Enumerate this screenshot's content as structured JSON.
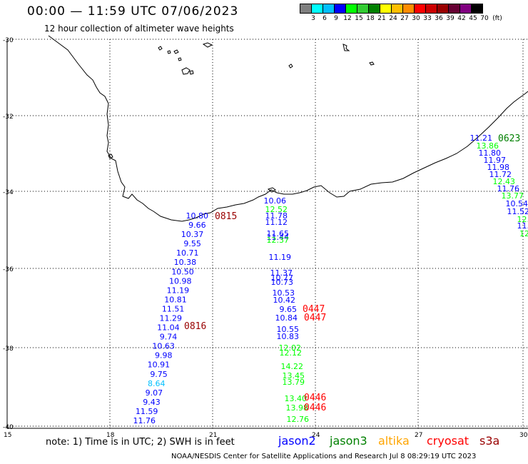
{
  "header": {
    "title": "00:00 — 11:59 UTC 07/06/2023",
    "subtitle": "12 hour collection of altimeter wave heights"
  },
  "color_scale": {
    "labels": [
      "3",
      "6",
      "9",
      "12",
      "15",
      "18",
      "21",
      "24",
      "27",
      "30",
      "33",
      "36",
      "39",
      "42",
      "45",
      "70"
    ],
    "unit": "(ft)",
    "colors": [
      "#7f7f7f",
      "#00ffff",
      "#00bfff",
      "#0000ff",
      "#00ff00",
      "#33cc33",
      "#008000",
      "#ffff00",
      "#ffbf00",
      "#ff8c00",
      "#ff0000",
      "#cc0000",
      "#990000",
      "#660033",
      "#800080",
      "#000000"
    ]
  },
  "axes": {
    "lat_labels": [
      "-30",
      "-32",
      "-34",
      "-36",
      "-38",
      "-40"
    ],
    "lon_labels": [
      "15",
      "18",
      "21",
      "24",
      "27",
      "30"
    ]
  },
  "tracks": {
    "jason2_west": {
      "values": [
        "10.80",
        "9.66",
        "10.37",
        "9.55",
        "10.71",
        "10.38",
        "10.50",
        "10.98",
        "11.19",
        "10.81",
        "11.51",
        "11.29",
        "11.04",
        "9.74",
        "10.63",
        "9.98",
        "10.91",
        "9.75",
        "8.64",
        "9.07",
        "9.43",
        "11.59",
        "11.76"
      ],
      "colors": [
        "#0000ff",
        "#0000ff",
        "#0000ff",
        "#0000ff",
        "#0000ff",
        "#0000ff",
        "#0000ff",
        "#0000ff",
        "#0000ff",
        "#0000ff",
        "#0000ff",
        "#0000ff",
        "#0000ff",
        "#0000ff",
        "#0000ff",
        "#0000ff",
        "#0000ff",
        "#0000ff",
        "#00bfff",
        "#0000ff",
        "#0000ff",
        "#0000ff",
        "#0000ff"
      ],
      "times": [
        "0815",
        "0816"
      ],
      "time_color": "#990000"
    },
    "mixed_central": {
      "values": [
        "10.06",
        "12.52",
        "11.78",
        "11.12",
        "11.65",
        "11.44",
        "12.37",
        "11.19",
        "11.37",
        "10.77",
        "10.73",
        "10.53",
        "10.42",
        "9.65",
        "10.84",
        "10.55",
        "10.83",
        "12.02",
        "12.12",
        "14.22",
        "13.45",
        "13.79",
        "13.40",
        "13.98",
        "12.76"
      ],
      "colors": [
        "#0000ff",
        "#00ff00",
        "#0000ff",
        "#0000ff",
        "#0000ff",
        "#0000ff",
        "#00ff00",
        "#0000ff",
        "#0000ff",
        "#0000ff",
        "#0000ff",
        "#0000ff",
        "#0000ff",
        "#0000ff",
        "#0000ff",
        "#0000ff",
        "#0000ff",
        "#00ff00",
        "#00ff00",
        "#00ff00",
        "#00ff00",
        "#00ff00",
        "#00ff00",
        "#00ff00",
        "#00ff00"
      ],
      "times": [
        "0447",
        "0447",
        "0446",
        "0446"
      ],
      "time_color": "#ff0000"
    },
    "jason3_east": {
      "values": [
        "11.21",
        "13.86",
        "11.80",
        "11.97",
        "11.98",
        "11.72",
        "12.43",
        "11.76",
        "13.77",
        "10.54",
        "11.52",
        "12.",
        "11.",
        "12"
      ],
      "colors": [
        "#0000ff",
        "#00ff00",
        "#0000ff",
        "#0000ff",
        "#0000ff",
        "#0000ff",
        "#00ff00",
        "#0000ff",
        "#00ff00",
        "#0000ff",
        "#0000ff",
        "#00ff00",
        "#0000ff",
        "#00ff00"
      ],
      "times": [
        "0623"
      ],
      "time_color": "#008000"
    }
  },
  "footer": {
    "note": "note:  1) Time is in UTC;  2) SWH is in feet",
    "legend": [
      {
        "name": "jason2",
        "color": "#0000ff"
      },
      {
        "name": "jason3",
        "color": "#008000"
      },
      {
        "name": "altika",
        "color": "#ffa500"
      },
      {
        "name": "cryosat",
        "color": "#ff0000"
      },
      {
        "name": "s3a",
        "color": "#990000"
      }
    ],
    "credit": "NOAA/NESDIS Center for Satellite Applications and Research    Jul  8 08:29:19 UTC 2023"
  }
}
